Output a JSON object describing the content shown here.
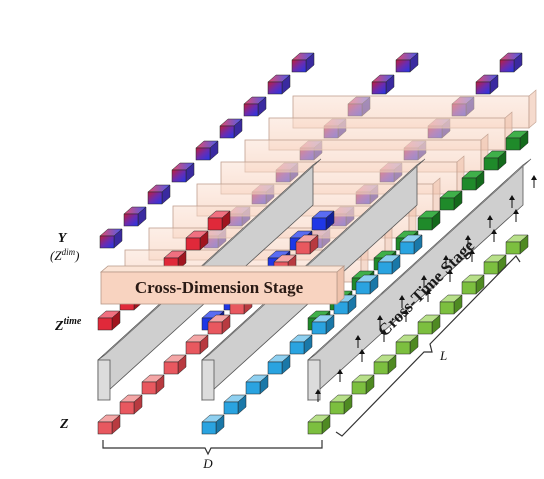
{
  "labels": {
    "y": "Y",
    "z_dim": "(Z",
    "z_dim_sup": "dim",
    "z_dim_close": ")",
    "z_time": "Z",
    "z_time_sup": "time",
    "z": "Z",
    "d": "D",
    "l": "L",
    "cross_dimension": "Cross-Dimension Stage",
    "cross_time": "Cross-Time Stage"
  },
  "colors": {
    "red_token": "#e8585f",
    "red_token_top": "#f4a6a6",
    "blue_token": "#2aa3e0",
    "green_token": "#7cbf3f",
    "green_token_top": "#b8e08a",
    "gray_block": "#c9c9c9",
    "cross_dim_fill": "#f8d3c0",
    "output_purple": "#5e2ea8",
    "output_blue": "#1d2fe0",
    "output_red": "#c4214a",
    "green_dark": "#1f8a2a"
  }
}
